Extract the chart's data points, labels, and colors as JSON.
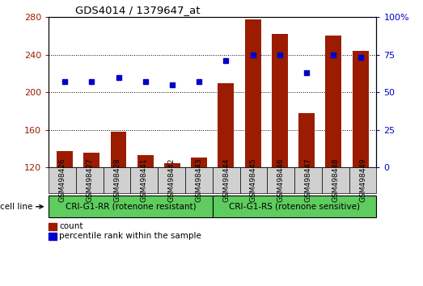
{
  "title": "GDS4014 / 1379647_at",
  "samples": [
    "GSM498426",
    "GSM498427",
    "GSM498428",
    "GSM498441",
    "GSM498442",
    "GSM498443",
    "GSM498444",
    "GSM498445",
    "GSM498446",
    "GSM498447",
    "GSM498448",
    "GSM498449"
  ],
  "counts": [
    137,
    136,
    158,
    133,
    124,
    130,
    210,
    278,
    262,
    178,
    260,
    244
  ],
  "percentile_ranks": [
    57,
    57,
    60,
    57,
    55,
    57,
    71,
    75,
    75,
    63,
    75,
    73
  ],
  "group1_label": "CRI-G1-RR (rotenone resistant)",
  "group2_label": "CRI-G1-RS (rotenone sensitive)",
  "group1_count": 6,
  "group2_count": 6,
  "ylim_left": [
    120,
    280
  ],
  "ylim_right": [
    0,
    100
  ],
  "yticks_left": [
    120,
    160,
    200,
    240,
    280
  ],
  "yticks_right": [
    0,
    25,
    50,
    75,
    100
  ],
  "bar_color": "#9B1C00",
  "dot_color": "#0000CC",
  "group_bg": "#5ECC5E",
  "legend_count_label": "count",
  "legend_pct_label": "percentile rank within the sample",
  "cell_line_label": "cell line",
  "tick_bg": "#D0D0D0"
}
